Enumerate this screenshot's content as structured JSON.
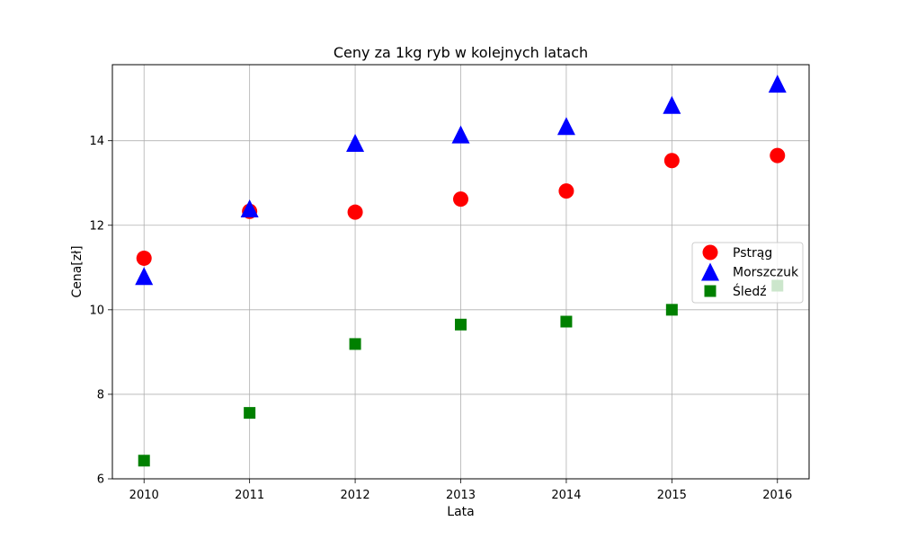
{
  "chart_data": {
    "type": "scatter",
    "title": "Ceny za 1kg ryb w kolejnych latach",
    "xlabel": "Lata",
    "ylabel": "Cena[zł]",
    "x": [
      2010,
      2011,
      2012,
      2013,
      2014,
      2015,
      2016
    ],
    "xlim": [
      2009.7,
      2016.3
    ],
    "ylim": [
      6,
      15.8
    ],
    "xticks": [
      "2010",
      "2011",
      "2012",
      "2013",
      "2014",
      "2015",
      "2016"
    ],
    "yticks": [
      6,
      8,
      10,
      12,
      14
    ],
    "ytick_labels": [
      "6",
      "8",
      "10",
      "12",
      "14"
    ],
    "grid": true,
    "legend_position": "center-right",
    "series": [
      {
        "name": "Pstrąg",
        "marker": "circle",
        "color": "#ff0000",
        "values": [
          11.22,
          12.33,
          12.31,
          12.62,
          12.81,
          13.53,
          13.65
        ]
      },
      {
        "name": "Morszczuk",
        "marker": "triangle",
        "color": "#0000ff",
        "values": [
          10.8,
          12.4,
          13.95,
          14.15,
          14.35,
          14.85,
          15.35
        ]
      },
      {
        "name": "Śledź",
        "marker": "square",
        "color": "#008000",
        "values": [
          6.43,
          7.56,
          9.19,
          9.65,
          9.72,
          10.0,
          10.57
        ]
      }
    ]
  }
}
